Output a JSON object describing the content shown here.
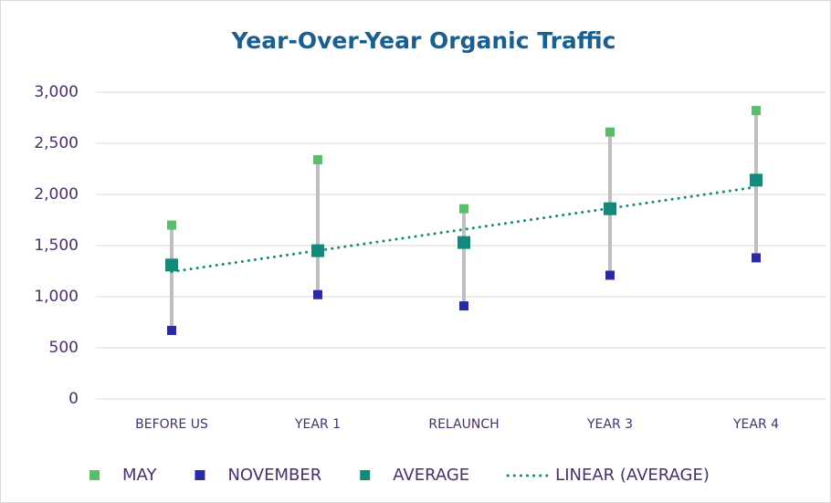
{
  "chart_data": {
    "type": "line",
    "title": "Year-Over-Year Organic Traffic",
    "categories": [
      "BEFORE US",
      "YEAR 1",
      "RELAUNCH",
      "YEAR 3",
      "YEAR 4"
    ],
    "series": [
      {
        "name": "MAY",
        "color": "#5bbd6b",
        "values": [
          1700,
          2340,
          1860,
          2610,
          2820
        ]
      },
      {
        "name": "NOVEMBER",
        "color": "#2a2aa8",
        "values": [
          670,
          1020,
          910,
          1210,
          1380
        ]
      },
      {
        "name": "AVERAGE",
        "color": "#12897a",
        "values": [
          1310,
          1450,
          1530,
          1860,
          2140
        ]
      }
    ],
    "trendline": {
      "name": "LINEAR (AVERAGE)",
      "type": "linear",
      "source": "AVERAGE",
      "color": "#12897a"
    },
    "high_low_lines": true,
    "ylim": [
      0,
      3000
    ],
    "yticks": [
      0,
      {
        "value": 500,
        "label": "500"
      },
      {
        "value": 1000,
        "label": "1,000"
      },
      {
        "value": 1500,
        "label": "1,500"
      },
      {
        "value": 2000,
        "label": "2,000"
      },
      {
        "value": 2500,
        "label": "2,500"
      },
      {
        "value": 3000,
        "label": "3,000"
      }
    ],
    "grid": true,
    "legend": "bottom"
  }
}
